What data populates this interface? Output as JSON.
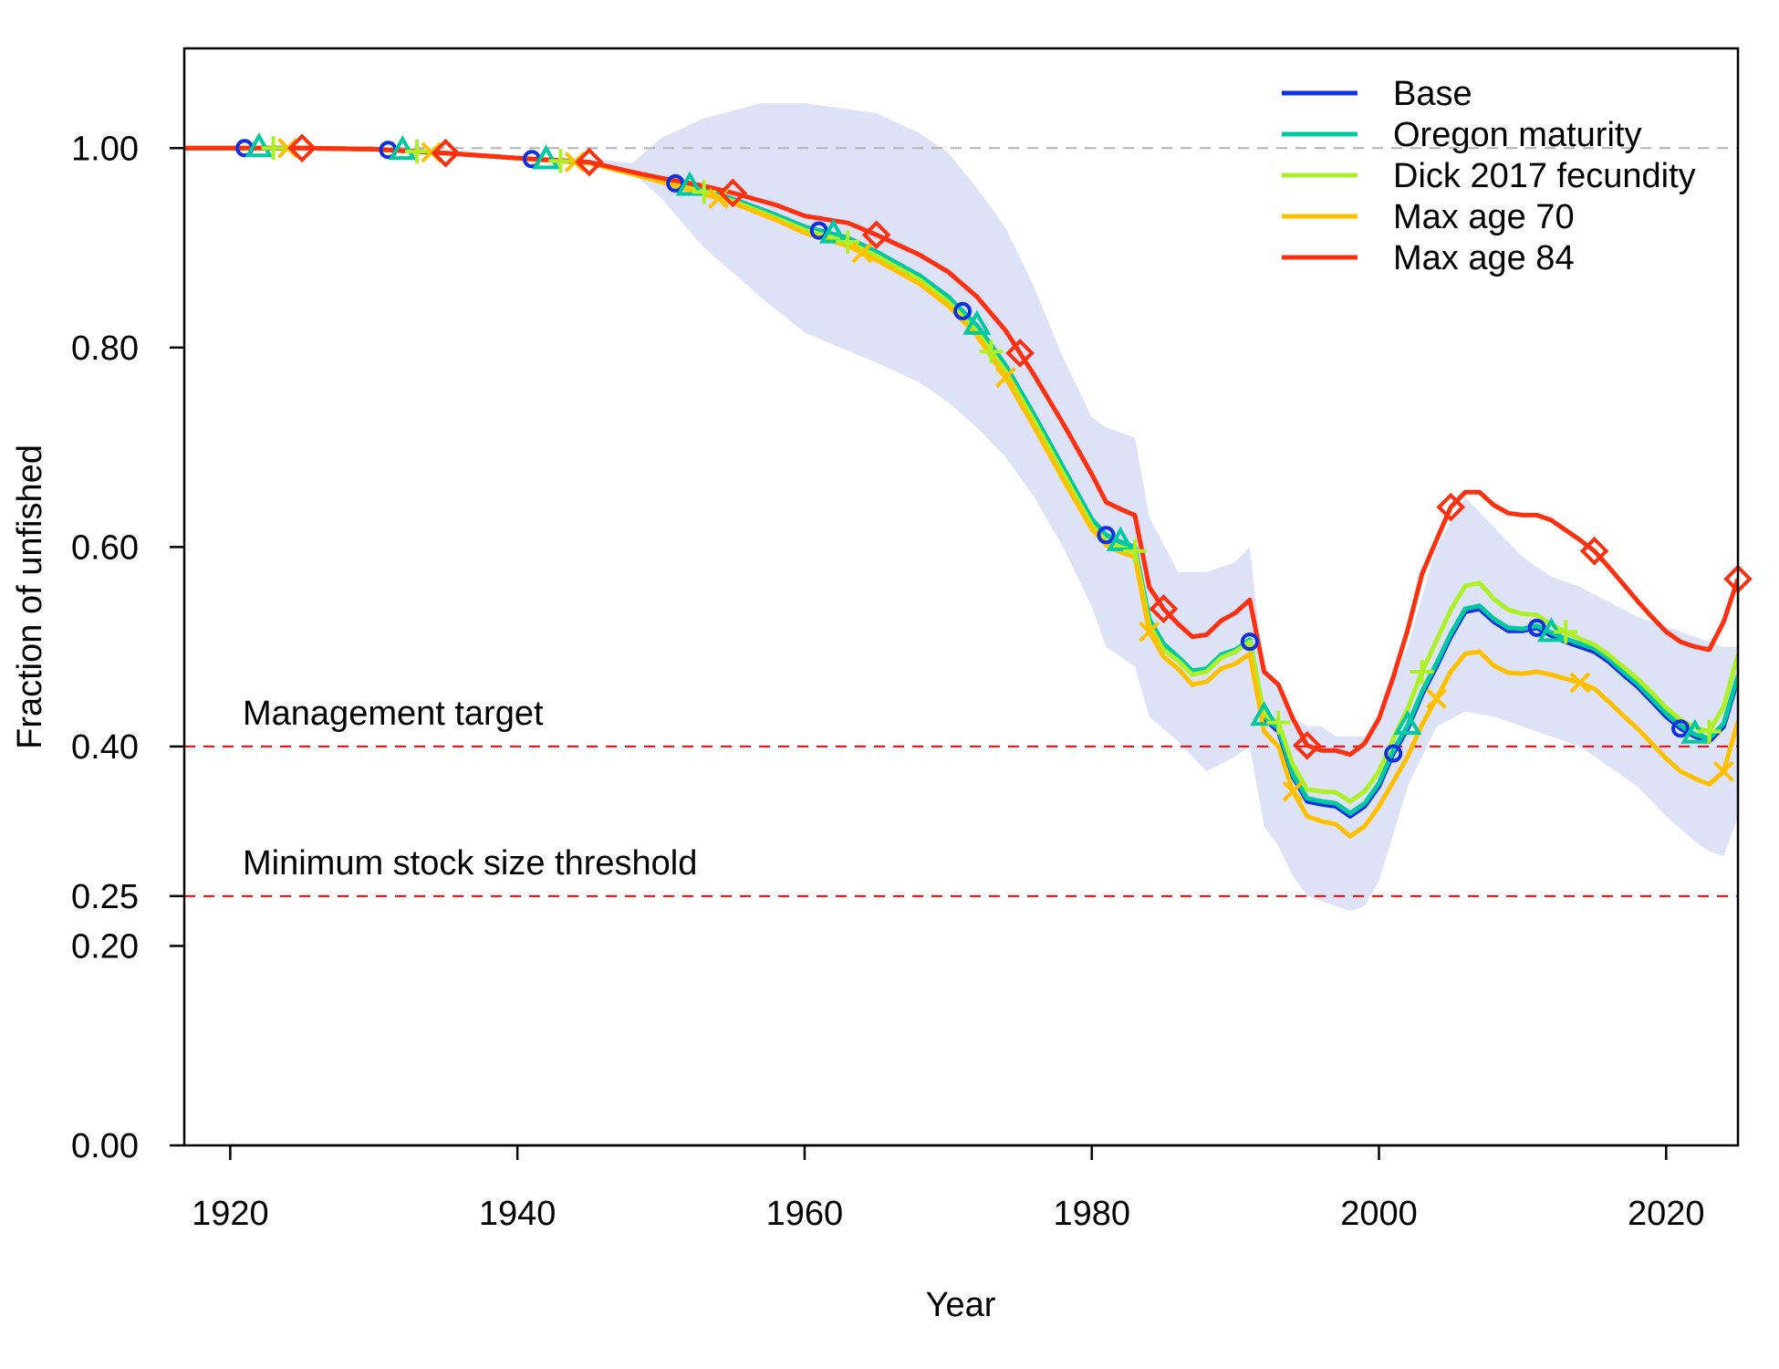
{
  "chart_data": {
    "type": "line",
    "xlabel": "Year",
    "ylabel": "Fraction of unfished",
    "xlim": [
      1916.8,
      2025
    ],
    "ylim": [
      0,
      1.1
    ],
    "xticks": [
      1920,
      1940,
      1960,
      1980,
      2000,
      2020
    ],
    "yticks": [
      0.0,
      0.2,
      0.25,
      0.4,
      0.6,
      0.8,
      1.0
    ],
    "ytick_labels": [
      "0.00",
      "0.20",
      "0.25",
      "0.40",
      "0.60",
      "0.80",
      "1.00"
    ],
    "reference_lines": [
      {
        "label": "",
        "y": 1.0,
        "color": "#b3b3b3",
        "style": "dashed"
      },
      {
        "label": "Management target",
        "y": 0.4,
        "color": "#ff0000",
        "style": "dashed"
      },
      {
        "label": "Minimum stock size threshold",
        "y": 0.25,
        "color": "#ff0000",
        "style": "dashed"
      }
    ],
    "legend_position": "top-right",
    "uncertainty_band": {
      "color": "#dde2f7",
      "x": [
        1916.8,
        1945,
        1948,
        1950,
        1953,
        1957,
        1960,
        1965,
        1968,
        1970,
        1972,
        1974,
        1976,
        1978,
        1980,
        1981,
        1983,
        1984,
        1986,
        1988,
        1990,
        1991,
        1992,
        1993,
        1994,
        1995,
        1996,
        1997,
        1998,
        1999,
        2000,
        2002,
        2004,
        2006,
        2008,
        2010,
        2012,
        2014,
        2016,
        2018,
        2020,
        2022,
        2023,
        2024,
        2025
      ],
      "upper": [
        1.0,
        0.99,
        0.985,
        1.01,
        1.03,
        1.045,
        1.045,
        1.035,
        1.015,
        0.995,
        0.96,
        0.92,
        0.86,
        0.79,
        0.73,
        0.72,
        0.71,
        0.63,
        0.575,
        0.575,
        0.585,
        0.6,
        0.47,
        0.46,
        0.43,
        0.42,
        0.42,
        0.41,
        0.41,
        0.41,
        0.43,
        0.5,
        0.6,
        0.65,
        0.62,
        0.59,
        0.57,
        0.56,
        0.545,
        0.53,
        0.52,
        0.51,
        0.505,
        0.5,
        0.5
      ],
      "lower": [
        1.0,
        0.99,
        0.975,
        0.95,
        0.9,
        0.85,
        0.815,
        0.785,
        0.765,
        0.745,
        0.72,
        0.69,
        0.65,
        0.6,
        0.54,
        0.5,
        0.48,
        0.43,
        0.405,
        0.375,
        0.39,
        0.4,
        0.32,
        0.3,
        0.27,
        0.25,
        0.245,
        0.24,
        0.235,
        0.24,
        0.265,
        0.36,
        0.42,
        0.435,
        0.43,
        0.42,
        0.41,
        0.4,
        0.38,
        0.36,
        0.33,
        0.305,
        0.295,
        0.29,
        0.33
      ]
    },
    "series": [
      {
        "name": "Base",
        "color": "#1030e0",
        "marker": "circle",
        "x": [
          1916.8,
          1925,
          1930,
          1935,
          1940,
          1945,
          1948,
          1950,
          1953,
          1955,
          1958,
          1960,
          1963,
          1965,
          1968,
          1970,
          1972,
          1974,
          1976,
          1978,
          1980,
          1981,
          1982,
          1983,
          1984,
          1985,
          1986,
          1987,
          1988,
          1989,
          1990,
          1991,
          1992,
          1993,
          1994,
          1995,
          1996,
          1997,
          1998,
          1999,
          2000,
          2001,
          2002,
          2003,
          2004,
          2005,
          2006,
          2007,
          2008,
          2009,
          2010,
          2011,
          2012,
          2013,
          2014,
          2015,
          2016,
          2017,
          2018,
          2019,
          2020,
          2021,
          2022,
          2023,
          2024,
          2025
        ],
        "y": [
          1.0,
          1.0,
          0.999,
          0.995,
          0.99,
          0.985,
          0.975,
          0.968,
          0.958,
          0.949,
          0.933,
          0.921,
          0.91,
          0.896,
          0.872,
          0.851,
          0.822,
          0.782,
          0.732,
          0.68,
          0.628,
          0.612,
          0.605,
          0.6,
          0.525,
          0.5,
          0.488,
          0.474,
          0.476,
          0.49,
          0.495,
          0.505,
          0.428,
          0.415,
          0.37,
          0.345,
          0.342,
          0.34,
          0.33,
          0.34,
          0.36,
          0.393,
          0.418,
          0.452,
          0.48,
          0.51,
          0.535,
          0.538,
          0.525,
          0.516,
          0.516,
          0.519,
          0.511,
          0.505,
          0.5,
          0.495,
          0.485,
          0.472,
          0.46,
          0.445,
          0.43,
          0.418,
          0.41,
          0.405,
          0.42,
          0.468
        ],
        "markers_x": [
          1921,
          1931,
          1941,
          1951,
          1961,
          1971,
          1981,
          1991,
          2001,
          2011,
          2021
        ]
      },
      {
        "name": "Oregon maturity",
        "color": "#00c8a0",
        "marker": "triangle",
        "x": [
          1916.8,
          1925,
          1930,
          1935,
          1940,
          1945,
          1948,
          1950,
          1953,
          1955,
          1958,
          1960,
          1963,
          1965,
          1968,
          1970,
          1972,
          1974,
          1976,
          1978,
          1980,
          1981,
          1982,
          1983,
          1984,
          1985,
          1986,
          1987,
          1988,
          1989,
          1990,
          1991,
          1992,
          1993,
          1994,
          1995,
          1996,
          1997,
          1998,
          1999,
          2000,
          2001,
          2002,
          2003,
          2004,
          2005,
          2006,
          2007,
          2008,
          2009,
          2010,
          2011,
          2012,
          2013,
          2014,
          2015,
          2016,
          2017,
          2018,
          2019,
          2020,
          2021,
          2022,
          2023,
          2024,
          2025
        ],
        "y": [
          1.0,
          1.0,
          0.999,
          0.995,
          0.99,
          0.985,
          0.975,
          0.968,
          0.958,
          0.949,
          0.933,
          0.921,
          0.91,
          0.896,
          0.872,
          0.851,
          0.822,
          0.782,
          0.732,
          0.68,
          0.628,
          0.612,
          0.605,
          0.6,
          0.528,
          0.503,
          0.49,
          0.476,
          0.478,
          0.492,
          0.497,
          0.507,
          0.43,
          0.418,
          0.372,
          0.348,
          0.345,
          0.343,
          0.333,
          0.343,
          0.363,
          0.396,
          0.421,
          0.455,
          0.483,
          0.513,
          0.538,
          0.541,
          0.528,
          0.519,
          0.518,
          0.521,
          0.514,
          0.508,
          0.503,
          0.498,
          0.488,
          0.475,
          0.463,
          0.448,
          0.433,
          0.421,
          0.412,
          0.408,
          0.423,
          0.471
        ],
        "markers_x": [
          1922,
          1932,
          1942,
          1952,
          1962,
          1972,
          1982,
          1992,
          2002,
          2012,
          2022
        ]
      },
      {
        "name": "Dick 2017 fecundity",
        "color": "#aef028",
        "marker": "plus",
        "x": [
          1916.8,
          1925,
          1930,
          1935,
          1940,
          1945,
          1948,
          1950,
          1953,
          1955,
          1958,
          1960,
          1963,
          1965,
          1968,
          1970,
          1972,
          1974,
          1976,
          1978,
          1980,
          1981,
          1982,
          1983,
          1984,
          1985,
          1986,
          1987,
          1988,
          1989,
          1990,
          1991,
          1992,
          1993,
          1994,
          1995,
          1996,
          1997,
          1998,
          1999,
          2000,
          2001,
          2002,
          2003,
          2004,
          2005,
          2006,
          2007,
          2008,
          2009,
          2010,
          2011,
          2012,
          2013,
          2014,
          2015,
          2016,
          2017,
          2018,
          2019,
          2020,
          2021,
          2022,
          2023,
          2024,
          2025
        ],
        "y": [
          1.0,
          1.0,
          0.999,
          0.995,
          0.99,
          0.985,
          0.975,
          0.967,
          0.956,
          0.947,
          0.93,
          0.918,
          0.906,
          0.892,
          0.868,
          0.846,
          0.816,
          0.776,
          0.726,
          0.674,
          0.622,
          0.606,
          0.6,
          0.596,
          0.522,
          0.497,
          0.486,
          0.472,
          0.475,
          0.489,
          0.495,
          0.505,
          0.432,
          0.424,
          0.382,
          0.357,
          0.355,
          0.354,
          0.345,
          0.355,
          0.375,
          0.408,
          0.438,
          0.475,
          0.506,
          0.537,
          0.561,
          0.564,
          0.548,
          0.537,
          0.533,
          0.532,
          0.522,
          0.515,
          0.508,
          0.502,
          0.492,
          0.48,
          0.468,
          0.454,
          0.439,
          0.427,
          0.419,
          0.415,
          0.44,
          0.492
        ],
        "markers_x": [
          1923,
          1933,
          1943,
          1953,
          1963,
          1973,
          1983,
          1993,
          2003,
          2013,
          2023
        ]
      },
      {
        "name": "Max age 70",
        "color": "#ffc000",
        "marker": "x",
        "x": [
          1916.8,
          1925,
          1930,
          1935,
          1940,
          1945,
          1948,
          1950,
          1953,
          1955,
          1958,
          1960,
          1963,
          1965,
          1968,
          1970,
          1972,
          1974,
          1976,
          1978,
          1980,
          1981,
          1982,
          1983,
          1984,
          1985,
          1986,
          1987,
          1988,
          1989,
          1990,
          1991,
          1992,
          1993,
          1994,
          1995,
          1996,
          1997,
          1998,
          1999,
          2000,
          2001,
          2002,
          2003,
          2004,
          2005,
          2006,
          2007,
          2008,
          2009,
          2010,
          2011,
          2012,
          2013,
          2014,
          2015,
          2016,
          2017,
          2018,
          2019,
          2020,
          2021,
          2022,
          2023,
          2024,
          2025
        ],
        "y": [
          1.0,
          1.0,
          0.999,
          0.995,
          0.99,
          0.985,
          0.974,
          0.966,
          0.954,
          0.945,
          0.928,
          0.915,
          0.902,
          0.888,
          0.864,
          0.842,
          0.812,
          0.77,
          0.72,
          0.668,
          0.618,
          0.602,
          0.595,
          0.59,
          0.515,
          0.49,
          0.478,
          0.462,
          0.465,
          0.478,
          0.483,
          0.493,
          0.415,
          0.4,
          0.355,
          0.33,
          0.325,
          0.322,
          0.31,
          0.32,
          0.34,
          0.365,
          0.39,
          0.422,
          0.448,
          0.475,
          0.493,
          0.495,
          0.481,
          0.474,
          0.473,
          0.475,
          0.472,
          0.468,
          0.464,
          0.458,
          0.445,
          0.431,
          0.418,
          0.403,
          0.388,
          0.375,
          0.368,
          0.362,
          0.375,
          0.425
        ],
        "markers_x": [
          1924,
          1934,
          1944,
          1954,
          1964,
          1974,
          1984,
          1994,
          2004,
          2014,
          2024
        ]
      },
      {
        "name": "Max age 84",
        "color": "#ff3010",
        "marker": "diamond",
        "x": [
          1916.8,
          1925,
          1930,
          1935,
          1940,
          1945,
          1948,
          1950,
          1953,
          1955,
          1958,
          1960,
          1963,
          1965,
          1968,
          1970,
          1972,
          1974,
          1976,
          1978,
          1980,
          1981,
          1982,
          1983,
          1984,
          1985,
          1986,
          1987,
          1988,
          1989,
          1990,
          1991,
          1992,
          1993,
          1994,
          1995,
          1996,
          1997,
          1998,
          1999,
          2000,
          2001,
          2002,
          2003,
          2004,
          2005,
          2006,
          2007,
          2008,
          2009,
          2010,
          2011,
          2012,
          2013,
          2014,
          2015,
          2016,
          2017,
          2018,
          2019,
          2020,
          2021,
          2022,
          2023,
          2024,
          2025
        ],
        "y": [
          1.0,
          1.0,
          0.999,
          0.995,
          0.99,
          0.986,
          0.976,
          0.97,
          0.962,
          0.955,
          0.943,
          0.932,
          0.925,
          0.913,
          0.893,
          0.876,
          0.851,
          0.817,
          0.772,
          0.724,
          0.673,
          0.645,
          0.638,
          0.632,
          0.56,
          0.538,
          0.523,
          0.51,
          0.512,
          0.526,
          0.534,
          0.547,
          0.475,
          0.462,
          0.428,
          0.401,
          0.396,
          0.396,
          0.392,
          0.403,
          0.428,
          0.47,
          0.517,
          0.573,
          0.607,
          0.64,
          0.655,
          0.655,
          0.642,
          0.634,
          0.632,
          0.632,
          0.627,
          0.617,
          0.607,
          0.596,
          0.58,
          0.563,
          0.546,
          0.53,
          0.515,
          0.505,
          0.5,
          0.497,
          0.525,
          0.568
        ],
        "markers_x": [
          1925,
          1935,
          1945,
          1955,
          1965,
          1975,
          1985,
          1995,
          2005,
          2015,
          2025
        ]
      }
    ]
  }
}
